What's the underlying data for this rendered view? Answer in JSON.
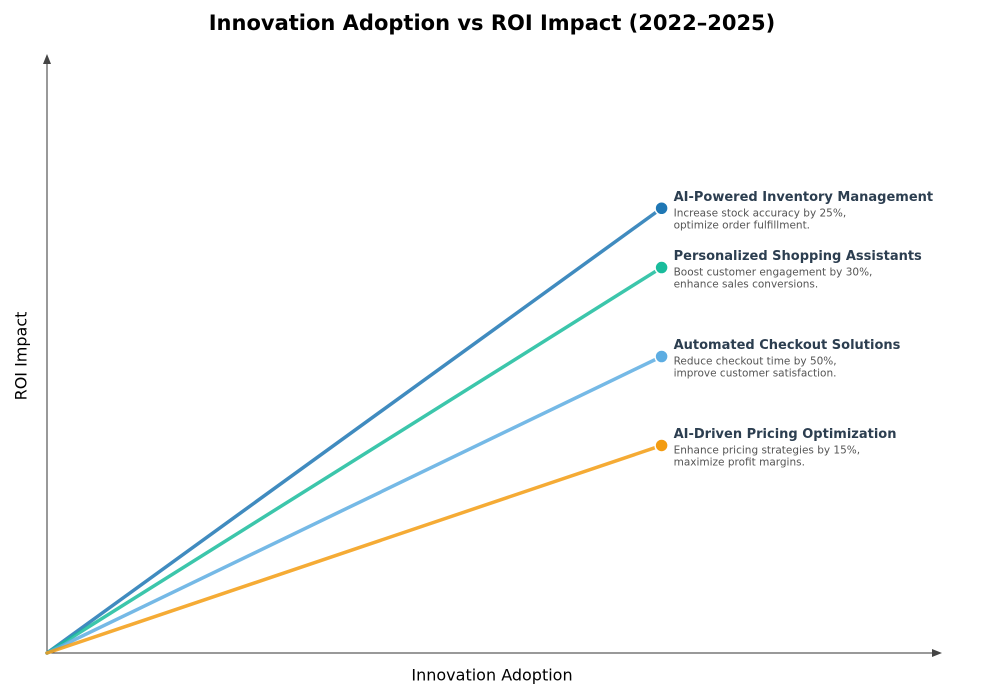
{
  "chart_data": {
    "type": "line",
    "title": "Innovation Adoption vs ROI Impact (2022–2025)",
    "x_label": "Innovation Adoption",
    "y_label": "ROI Impact",
    "xlim": [
      0,
      1
    ],
    "ylim": [
      0,
      1
    ],
    "x": [
      0,
      0.7
    ],
    "series": [
      {
        "name": "AI-Powered Inventory Management",
        "color": "#1f77b4",
        "values": [
          0,
          0.75
        ],
        "description": [
          "Increase stock accuracy by 25%,",
          "optimize order fulfillment."
        ]
      },
      {
        "name": "Personalized Shopping Assistants",
        "color": "#1abc9c",
        "values": [
          0,
          0.65
        ],
        "description": [
          "Boost customer engagement by 30%,",
          "enhance sales conversions."
        ]
      },
      {
        "name": "Automated Checkout Solutions",
        "color": "#5dade2",
        "values": [
          0,
          0.5
        ],
        "description": [
          "Reduce checkout time by 50%,",
          "improve customer satisfaction."
        ]
      },
      {
        "name": "AI-Driven Pricing Optimization",
        "color": "#f39c12",
        "values": [
          0,
          0.35
        ],
        "description": [
          "Enhance pricing strategies by 15%,",
          "maximize profit margins."
        ]
      }
    ]
  }
}
